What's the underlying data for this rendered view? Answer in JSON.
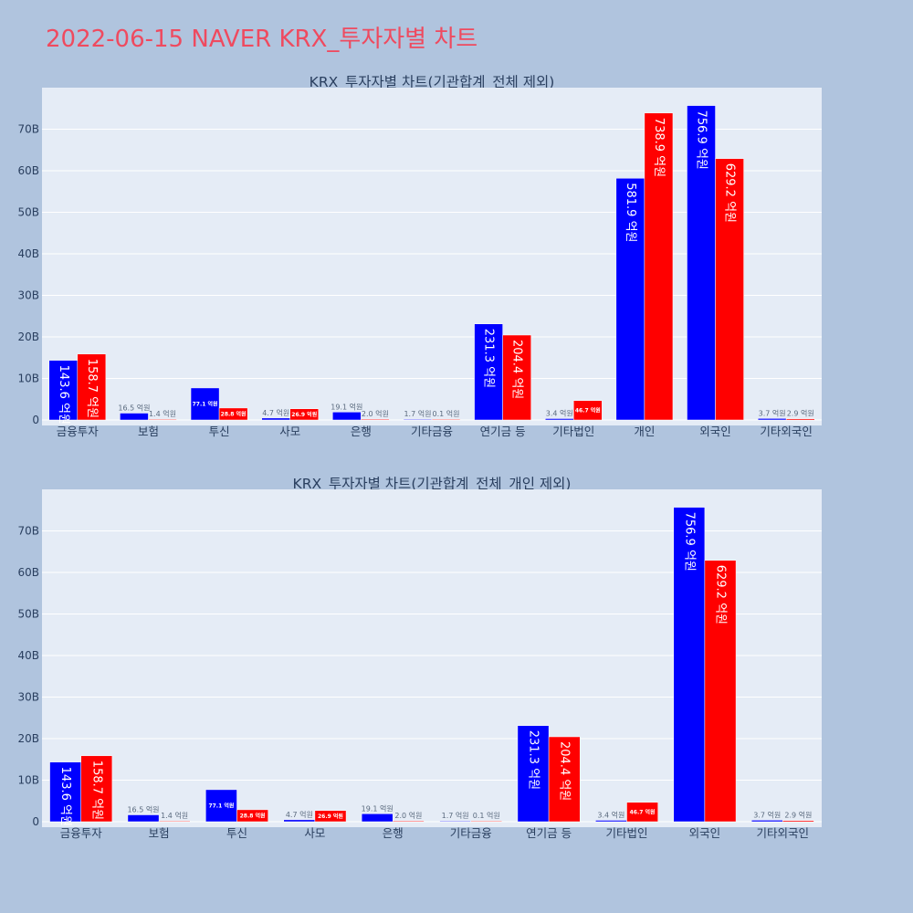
{
  "page": {
    "title": "2022-06-15 NAVER KRX_투자자별 차트",
    "background": "#b0c4de",
    "plot_background": "#e5ecf6",
    "title_color": "#ef4a5f"
  },
  "chart_data": [
    {
      "type": "bar",
      "title": "KRX_투자자별 차트(기관합계_전체 제외)",
      "categories": [
        "금융투자",
        "보험",
        "투신",
        "사모",
        "은행",
        "기타금융",
        "연기금 등",
        "기타법인",
        "개인",
        "외국인",
        "기타외국인"
      ],
      "series": [
        {
          "color": "#0000ff",
          "values": [
            14.36,
            1.65,
            7.71,
            0.47,
            1.91,
            0.17,
            23.13,
            0.34,
            58.19,
            75.69,
            0.37
          ],
          "labels": [
            "143.6 억원",
            "16.5 억원",
            "77.1 억원",
            "4.7 억원",
            "19.1 억원",
            "1.7 억원",
            "231.3 억원",
            "3.4 억원",
            "581.9 억원",
            "756.9 억원",
            "3.7 억원"
          ]
        },
        {
          "color": "#ff0000",
          "values": [
            15.87,
            0.14,
            2.88,
            2.69,
            0.2,
            0.01,
            20.44,
            4.67,
            73.89,
            62.92,
            0.29
          ],
          "labels": [
            "158.7 억원",
            "1.4 억원",
            "28.8 억원",
            "26.9 억원",
            "2.0 억원",
            "0.1 억원",
            "204.4 억원",
            "46.7 억원",
            "738.9 억원",
            "629.2 억원",
            "2.9 억원"
          ]
        }
      ],
      "ylim": [
        0,
        80
      ],
      "yticks": [
        0,
        10,
        20,
        30,
        40,
        50,
        60,
        70
      ],
      "ytick_labels": [
        "0",
        "10B",
        "20B",
        "30B",
        "40B",
        "50B",
        "60B",
        "70B"
      ],
      "grid": true,
      "legend": "none"
    },
    {
      "type": "bar",
      "title": "KRX_투자자별 차트(기관합계_전체_개인 제외)",
      "categories": [
        "금융투자",
        "보험",
        "투신",
        "사모",
        "은행",
        "기타금융",
        "연기금 등",
        "기타법인",
        "외국인",
        "기타외국인"
      ],
      "series": [
        {
          "color": "#0000ff",
          "values": [
            14.36,
            1.65,
            7.71,
            0.47,
            1.91,
            0.17,
            23.13,
            0.34,
            75.69,
            0.37
          ],
          "labels": [
            "143.6 억원",
            "16.5 억원",
            "77.1 억원",
            "4.7 억원",
            "19.1 억원",
            "1.7 억원",
            "231.3 억원",
            "3.4 억원",
            "756.9 억원",
            "3.7 억원"
          ]
        },
        {
          "color": "#ff0000",
          "values": [
            15.87,
            0.14,
            2.88,
            2.69,
            0.2,
            0.01,
            20.44,
            4.67,
            62.92,
            0.29
          ],
          "labels": [
            "158.7 억원",
            "1.4 억원",
            "28.8 억원",
            "26.9 억원",
            "2.0 억원",
            "0.1 억원",
            "204.4 억원",
            "46.7 억원",
            "629.2 억원",
            "2.9 억원"
          ]
        }
      ],
      "ylim": [
        0,
        80
      ],
      "yticks": [
        0,
        10,
        20,
        30,
        40,
        50,
        60,
        70
      ],
      "ytick_labels": [
        "0",
        "10B",
        "20B",
        "30B",
        "40B",
        "50B",
        "60B",
        "70B"
      ],
      "grid": true,
      "legend": "none"
    }
  ]
}
